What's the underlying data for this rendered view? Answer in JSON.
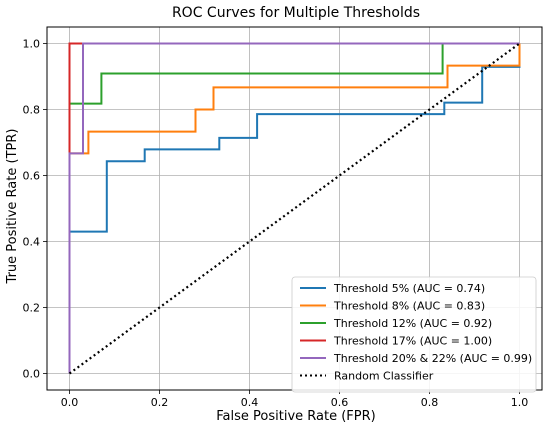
{
  "chart_data": {
    "type": "line",
    "title": "ROC Curves for Multiple Thresholds",
    "xlabel": "False Positive Rate (FPR)",
    "ylabel": "True Positive Rate (TPR)",
    "xlim": [
      -0.05,
      1.05
    ],
    "ylim": [
      -0.05,
      1.05
    ],
    "xticks": [
      "0.0",
      "0.2",
      "0.4",
      "0.6",
      "0.8",
      "1.0"
    ],
    "yticks": [
      "0.0",
      "0.2",
      "0.4",
      "0.6",
      "0.8",
      "1.0"
    ],
    "grid": true,
    "legend_position": "lower-right",
    "series": [
      {
        "name": "Threshold 5% (AUC = 0.74)",
        "color": "#1f77b4",
        "style": "solid",
        "points": [
          [
            0,
            0
          ],
          [
            0,
            0.43
          ],
          [
            0.083,
            0.43
          ],
          [
            0.083,
            0.643
          ],
          [
            0.167,
            0.643
          ],
          [
            0.167,
            0.679
          ],
          [
            0.333,
            0.679
          ],
          [
            0.333,
            0.714
          ],
          [
            0.417,
            0.714
          ],
          [
            0.417,
            0.786
          ],
          [
            0.833,
            0.786
          ],
          [
            0.833,
            0.821
          ],
          [
            0.917,
            0.821
          ],
          [
            0.917,
            0.929
          ],
          [
            1.0,
            0.929
          ],
          [
            1.0,
            1.0
          ]
        ]
      },
      {
        "name": "Threshold 8% (AUC = 0.83)",
        "color": "#ff7f0e",
        "style": "solid",
        "points": [
          [
            0,
            0
          ],
          [
            0,
            0.667
          ],
          [
            0.042,
            0.667
          ],
          [
            0.042,
            0.733
          ],
          [
            0.28,
            0.733
          ],
          [
            0.28,
            0.8
          ],
          [
            0.32,
            0.8
          ],
          [
            0.32,
            0.867
          ],
          [
            0.84,
            0.867
          ],
          [
            0.84,
            0.933
          ],
          [
            1.0,
            0.933
          ],
          [
            1.0,
            1.0
          ]
        ]
      },
      {
        "name": "Threshold 12% (AUC = 0.92)",
        "color": "#2ca02c",
        "style": "solid",
        "points": [
          [
            0,
            0
          ],
          [
            0,
            0.818
          ],
          [
            0.071,
            0.818
          ],
          [
            0.071,
            0.909
          ],
          [
            0.829,
            0.909
          ],
          [
            0.829,
            1.0
          ],
          [
            1.0,
            1.0
          ]
        ]
      },
      {
        "name": "Threshold 17% (AUC = 1.00)",
        "color": "#d62728",
        "style": "solid",
        "points": [
          [
            0,
            0
          ],
          [
            0,
            1.0
          ],
          [
            1.0,
            1.0
          ]
        ]
      },
      {
        "name": "Threshold 20% & 22% (AUC = 0.99)",
        "color": "#9467bd",
        "style": "solid",
        "points": [
          [
            0,
            0
          ],
          [
            0,
            0.667
          ],
          [
            0.03,
            0.667
          ],
          [
            0.03,
            1.0
          ],
          [
            1.0,
            1.0
          ]
        ]
      },
      {
        "name": "Random Classifier",
        "color": "#000000",
        "style": "dotted",
        "points": [
          [
            0,
            0
          ],
          [
            1,
            1
          ]
        ]
      }
    ]
  }
}
